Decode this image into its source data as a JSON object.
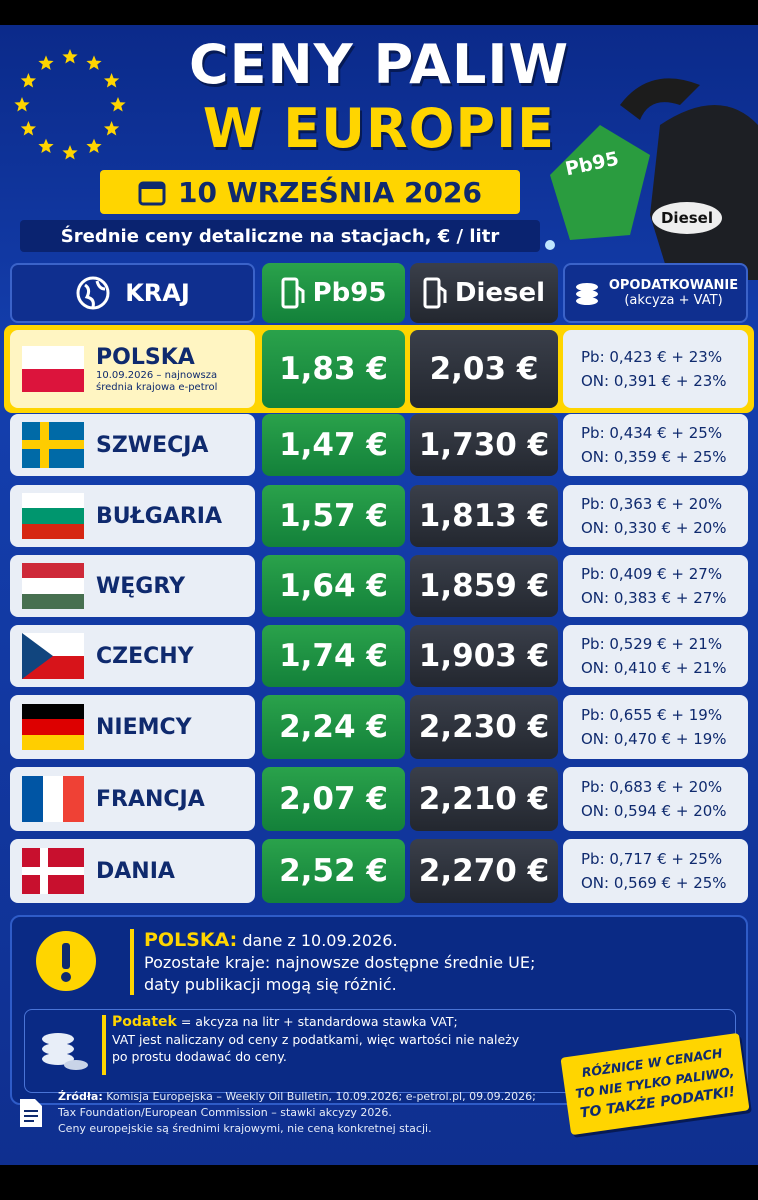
{
  "header": {
    "title_line1": "CENY PALIW",
    "title_line2": "W EUROPIE",
    "date": "10 WRZEŚNIA 2026",
    "subtitle": "Średnie ceny detaliczne na stacjach, € / litr",
    "pump_pb95": "Pb95",
    "pump_diesel": "Diesel"
  },
  "table": {
    "columns": {
      "country": "KRAJ",
      "pb95": "Pb95",
      "diesel": "Diesel",
      "tax": "OPODATKOWANIE",
      "tax_sub": "(akcyza + VAT)"
    },
    "rows": [
      {
        "country": "POLSKA",
        "note": "10.09.2026 – najnowsza średnia krajowa e-petrol",
        "pb95": "1,83 €",
        "diesel": "2,03 €",
        "tax_pb": "Pb: 0,423 € + 23%",
        "tax_on": "ON: 0,391 € + 23%"
      },
      {
        "country": "SZWECJA",
        "pb95": "1,47 €",
        "diesel": "1,730 €",
        "tax_pb": "Pb: 0,434 € + 25%",
        "tax_on": "ON: 0,359 € + 25%"
      },
      {
        "country": "BUŁGARIA",
        "pb95": "1,57 €",
        "diesel": "1,813 €",
        "tax_pb": "Pb: 0,363 € + 20%",
        "tax_on": "ON: 0,330 € + 20%"
      },
      {
        "country": "WĘGRY",
        "pb95": "1,64 €",
        "diesel": "1,859 €",
        "tax_pb": "Pb: 0,409 € + 27%",
        "tax_on": "ON: 0,383 € + 27%"
      },
      {
        "country": "CZECHY",
        "pb95": "1,74 €",
        "diesel": "1,903 €",
        "tax_pb": "Pb: 0,529 € + 21%",
        "tax_on": "ON: 0,410 € + 21%"
      },
      {
        "country": "NIEMCY",
        "pb95": "2,24 €",
        "diesel": "2,230 €",
        "tax_pb": "Pb: 0,655 € + 19%",
        "tax_on": "ON: 0,470 € + 19%"
      },
      {
        "country": "FRANCJA",
        "pb95": "2,07 €",
        "diesel": "2,210 €",
        "tax_pb": "Pb: 0,683 € + 20%",
        "tax_on": "ON: 0,594 € + 20%"
      },
      {
        "country": "DANIA",
        "pb95": "2,52 €",
        "diesel": "2,270 €",
        "tax_pb": "Pb: 0,717 € + 25%",
        "tax_on": "ON: 0,569 € + 25%"
      }
    ]
  },
  "notice": {
    "label": "POLSKA:",
    "text": "dane z 10.09.2026.",
    "line2": "Pozostałe kraje: najnowsze dostępne średnie UE;",
    "line3": "daty publikacji mogą się różnić."
  },
  "tax_note": {
    "label": "Podatek",
    "text": "= akcyza na litr + standardowa stawka VAT;",
    "line2": "VAT jest naliczany od ceny z podatkami, więc wartości nie należy",
    "line3": "po prostu dodawać do ceny."
  },
  "stamp": {
    "line1": "RÓŻNICE W CENACH",
    "line2": "TO NIE TYLKO PALIWO,",
    "line3": "TO TAKŻE PODATKI!"
  },
  "sources": {
    "label": "Źródła:",
    "line1": "Komisja Europejska – Weekly Oil Bulletin, 10.09.2026; e-petrol.pl, 09.09.2026;",
    "line2": "Tax Foundation/European Commission – stawki akcyzy 2026.",
    "line3": "Ceny europejskie są średnimi krajowymi, nie ceną konkretnej stacji."
  }
}
